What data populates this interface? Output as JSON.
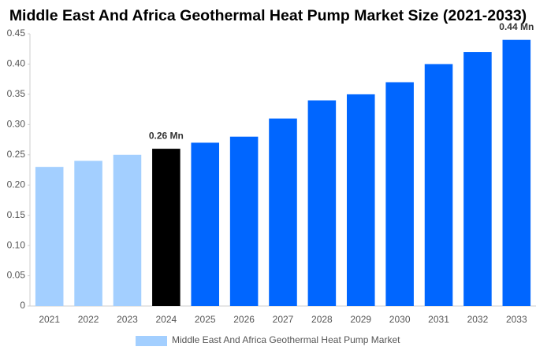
{
  "chart_data": {
    "type": "bar",
    "title": "Middle East And Africa Geothermal Heat Pump Market Size (2021-2033)",
    "categories": [
      "2021",
      "2022",
      "2023",
      "2024",
      "2025",
      "2026",
      "2027",
      "2028",
      "2029",
      "2030",
      "2031",
      "2032",
      "2033"
    ],
    "series": [
      {
        "name": "Middle East And Africa Geothermal Heat Pump Market",
        "color": "#a3cfff",
        "colors": [
          "#a3cfff",
          "#a3cfff",
          "#a3cfff",
          "#000000",
          "#0066ff",
          "#0066ff",
          "#0066ff",
          "#0066ff",
          "#0066ff",
          "#0066ff",
          "#0066ff",
          "#0066ff",
          "#0066ff"
        ],
        "values": [
          0.23,
          0.24,
          0.25,
          0.26,
          0.27,
          0.28,
          0.31,
          0.34,
          0.35,
          0.37,
          0.4,
          0.42,
          0.44
        ],
        "value_labels": [
          null,
          null,
          null,
          "0.26 Mn",
          null,
          null,
          null,
          null,
          null,
          null,
          null,
          null,
          "0.44 Mn"
        ]
      }
    ],
    "ylim": [
      0,
      0.45
    ],
    "yticks": [
      0,
      0.05,
      {
        "value": 0.1,
        "label": "0.10"
      },
      0.15,
      {
        "value": 0.2,
        "label": "0.20"
      },
      0.25,
      {
        "value": 0.3,
        "label": "0.30"
      },
      0.35,
      {
        "value": 0.4,
        "label": "0.40"
      },
      0.45
    ],
    "grid": false
  }
}
